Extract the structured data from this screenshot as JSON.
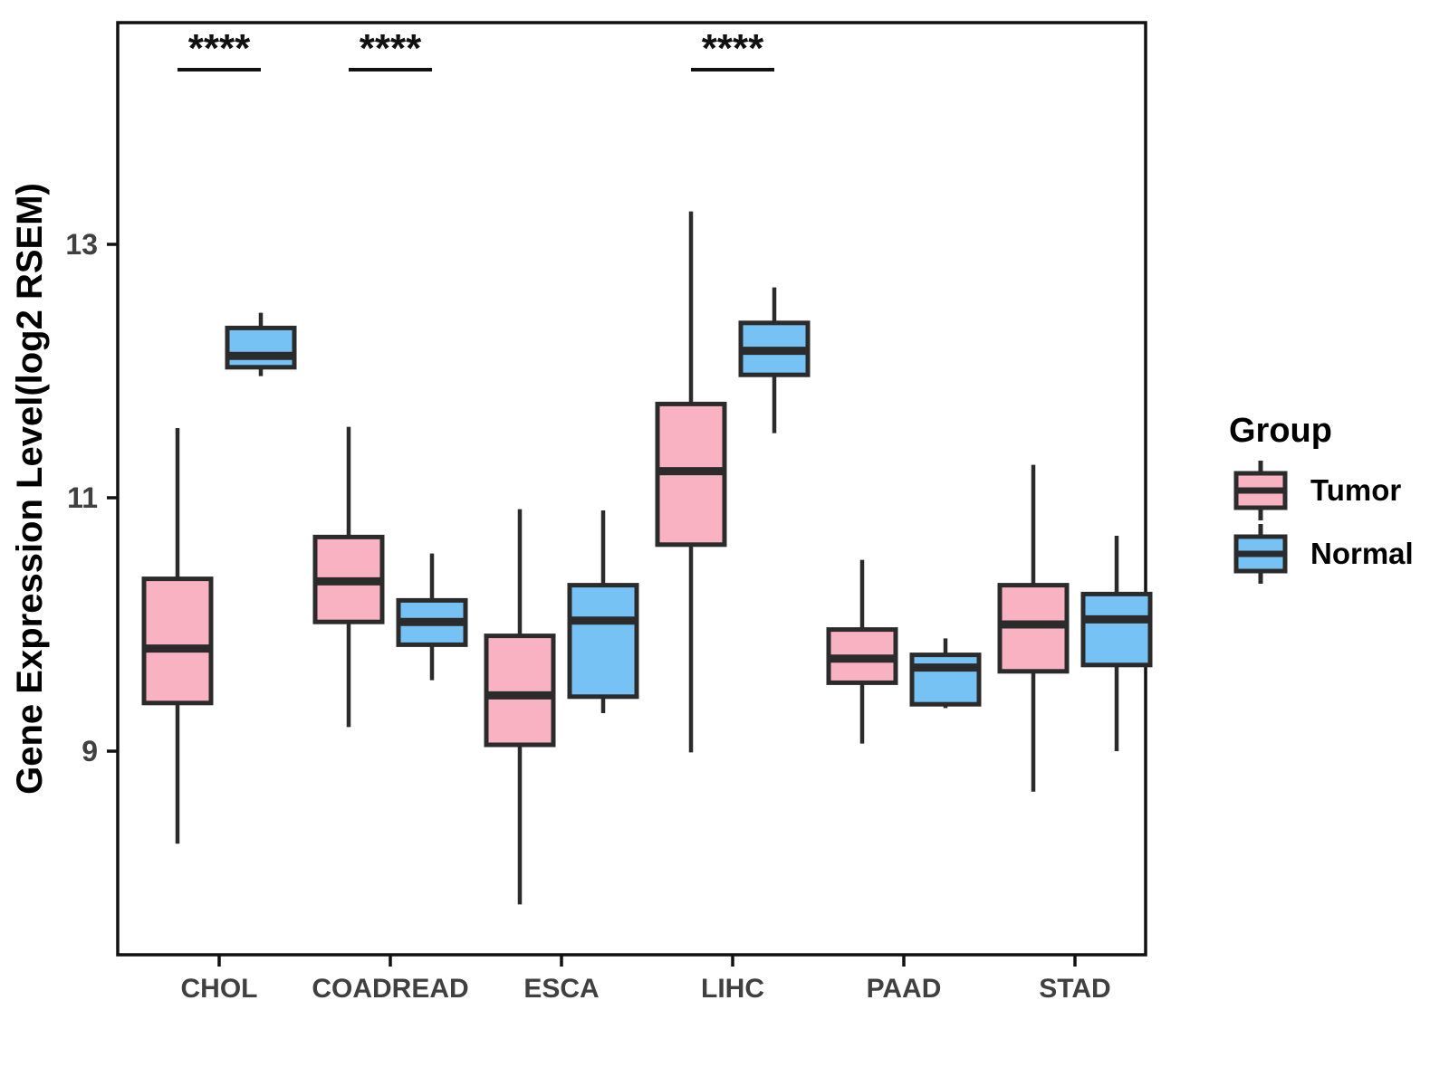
{
  "chart_data": {
    "type": "boxplot",
    "title": "",
    "xlabel": "",
    "ylabel": "Gene Expression Level(log2 RSEM)",
    "categories": [
      "CHOL",
      "COADREAD",
      "ESCA",
      "LIHC",
      "PAAD",
      "STAD"
    ],
    "yticks": [
      9,
      11,
      13
    ],
    "ylim": [
      7.35,
      14.75
    ],
    "grid": false,
    "legend": {
      "title": "Group",
      "position": "right",
      "entries": [
        {
          "label": "Tumor",
          "color": "#F9B2C2"
        },
        {
          "label": "Normal",
          "color": "#77C2F5"
        }
      ]
    },
    "significance": [
      {
        "category": "CHOL",
        "label": "****"
      },
      {
        "category": "COADREAD",
        "label": "****"
      },
      {
        "category": "LIHC",
        "label": "****"
      }
    ],
    "series": [
      {
        "name": "Tumor",
        "color": "#F9B2C2",
        "boxes": [
          {
            "category": "CHOL",
            "whisker_low": 8.27,
            "q1": 9.38,
            "median": 9.81,
            "q3": 10.36,
            "whisker_high": 11.55
          },
          {
            "category": "COADREAD",
            "whisker_low": 9.19,
            "q1": 10.02,
            "median": 10.34,
            "q3": 10.69,
            "whisker_high": 11.56
          },
          {
            "category": "ESCA",
            "whisker_low": 7.79,
            "q1": 9.05,
            "median": 9.44,
            "q3": 9.91,
            "whisker_high": 10.91
          },
          {
            "category": "LIHC",
            "whisker_low": 8.99,
            "q1": 10.63,
            "median": 11.21,
            "q3": 11.74,
            "whisker_high": 13.26
          },
          {
            "category": "PAAD",
            "whisker_low": 9.06,
            "q1": 9.54,
            "median": 9.73,
            "q3": 9.96,
            "whisker_high": 10.51
          },
          {
            "category": "STAD",
            "whisker_low": 8.68,
            "q1": 9.63,
            "median": 10.0,
            "q3": 10.31,
            "whisker_high": 11.26
          }
        ]
      },
      {
        "name": "Normal",
        "color": "#77C2F5",
        "boxes": [
          {
            "category": "CHOL",
            "whisker_low": 11.96,
            "q1": 12.03,
            "median": 12.12,
            "q3": 12.34,
            "whisker_high": 12.46
          },
          {
            "category": "COADREAD",
            "whisker_low": 9.56,
            "q1": 9.84,
            "median": 10.02,
            "q3": 10.19,
            "whisker_high": 10.56
          },
          {
            "category": "ESCA",
            "whisker_low": 9.3,
            "q1": 9.43,
            "median": 10.03,
            "q3": 10.31,
            "whisker_high": 10.9
          },
          {
            "category": "LIHC",
            "whisker_low": 11.51,
            "q1": 11.97,
            "median": 12.16,
            "q3": 12.38,
            "whisker_high": 12.66
          },
          {
            "category": "PAAD",
            "whisker_low": 9.34,
            "q1": 9.37,
            "median": 9.66,
            "q3": 9.76,
            "whisker_high": 9.89
          },
          {
            "category": "STAD",
            "whisker_low": 9.0,
            "q1": 9.68,
            "median": 10.04,
            "q3": 10.24,
            "whisker_high": 10.7
          }
        ]
      }
    ]
  },
  "colors": {
    "box_stroke": "#2b2b2b",
    "axis": "#111111",
    "tick_label": "#404040",
    "axis_title": "#000000",
    "significance": "#111111",
    "background": "#ffffff"
  }
}
